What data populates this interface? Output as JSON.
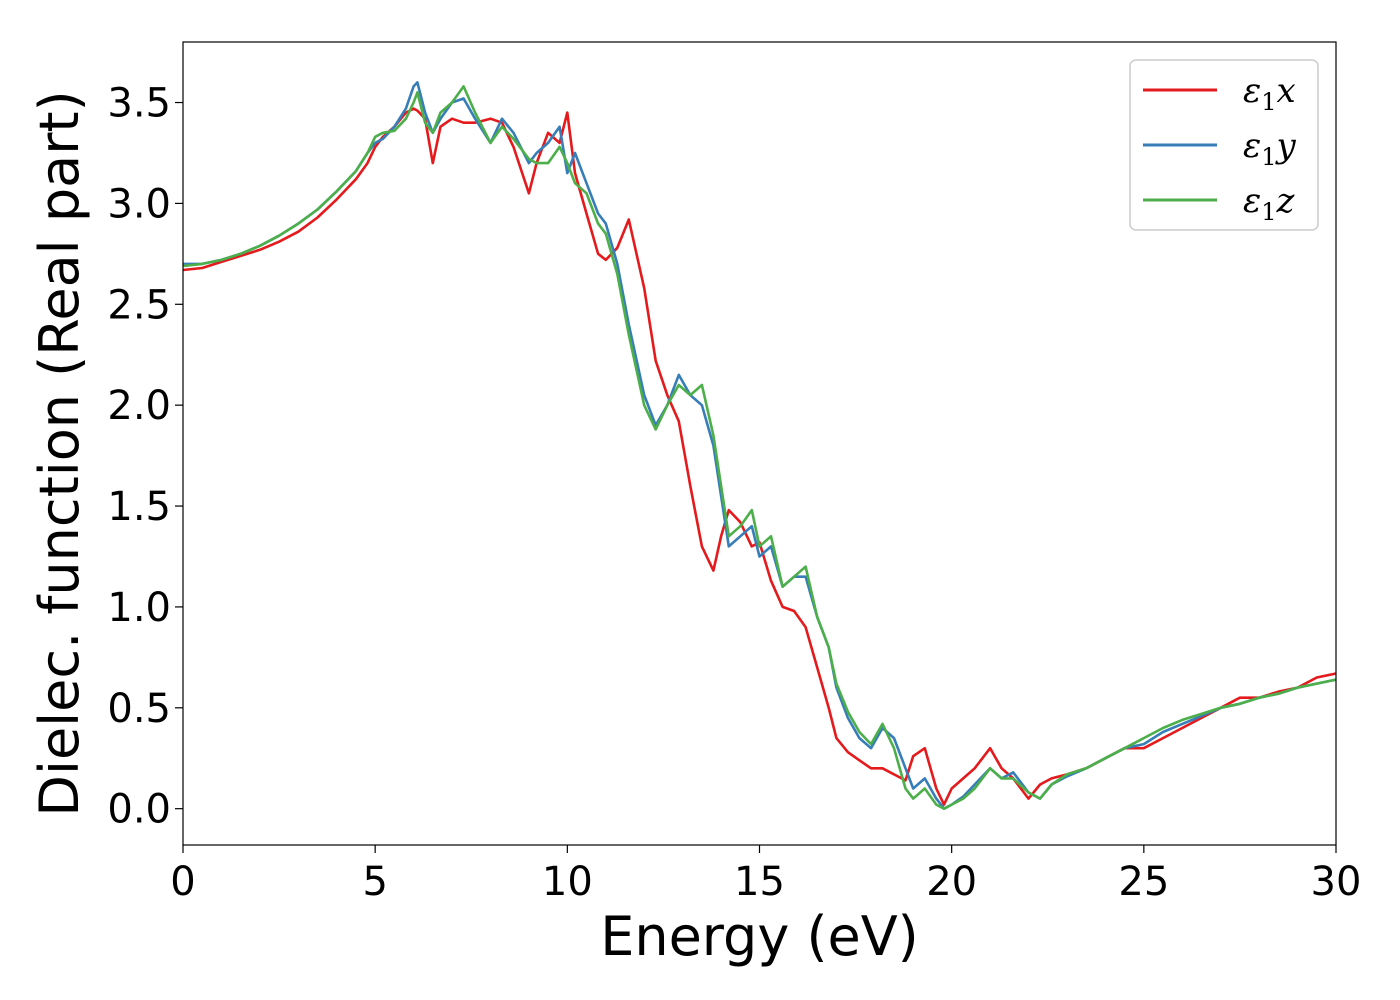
{
  "chart_data": {
    "type": "line",
    "title": "",
    "xlabel": "Energy (eV)",
    "ylabel": "Dielec. function (Real part)",
    "xlim": [
      0,
      30
    ],
    "ylim": [
      -0.18,
      3.8
    ],
    "xticks": [
      0,
      5,
      10,
      15,
      20,
      25,
      30
    ],
    "xtick_labels": [
      "0",
      "5",
      "10",
      "15",
      "20",
      "25",
      "30"
    ],
    "yticks": [
      0.0,
      0.5,
      1.0,
      1.5,
      2.0,
      2.5,
      3.0,
      3.5
    ],
    "ytick_labels": [
      "0.0",
      "0.5",
      "1.0",
      "1.5",
      "2.0",
      "2.5",
      "3.0",
      "3.5"
    ],
    "grid": false,
    "legend_position": "top-right",
    "series": [
      {
        "name": "ε₁x",
        "legend_base": "ε",
        "legend_sub": "1",
        "legend_var": "x",
        "color": "#e41a1c",
        "x": [
          0,
          0.5,
          1,
          1.5,
          2,
          2.5,
          3,
          3.5,
          4,
          4.5,
          4.8,
          5,
          5.2,
          5.5,
          5.8,
          6,
          6.1,
          6.3,
          6.5,
          6.7,
          7,
          7.3,
          7.6,
          8,
          8.3,
          8.6,
          9,
          9.2,
          9.5,
          9.8,
          10,
          10.2,
          10.5,
          10.8,
          11,
          11.3,
          11.6,
          12,
          12.3,
          12.6,
          12.9,
          13.2,
          13.5,
          13.8,
          14,
          14.2,
          14.5,
          14.8,
          15,
          15.3,
          15.6,
          15.9,
          16.2,
          16.5,
          16.8,
          17,
          17.3,
          17.6,
          17.9,
          18.2,
          18.5,
          18.8,
          19,
          19.3,
          19.6,
          19.8,
          20,
          20.3,
          20.6,
          21,
          21.3,
          21.6,
          22,
          22.3,
          22.6,
          23,
          23.5,
          24,
          24.5,
          25,
          25.5,
          26,
          26.5,
          27,
          27.5,
          28,
          28.5,
          29,
          29.5,
          30
        ],
        "y": [
          2.67,
          2.68,
          2.71,
          2.74,
          2.77,
          2.81,
          2.86,
          2.93,
          3.02,
          3.12,
          3.2,
          3.28,
          3.33,
          3.38,
          3.45,
          3.47,
          3.46,
          3.42,
          3.2,
          3.38,
          3.42,
          3.4,
          3.4,
          3.42,
          3.4,
          3.28,
          3.05,
          3.2,
          3.35,
          3.3,
          3.45,
          3.15,
          2.95,
          2.75,
          2.72,
          2.78,
          2.92,
          2.58,
          2.22,
          2.05,
          1.92,
          1.6,
          1.3,
          1.18,
          1.35,
          1.48,
          1.42,
          1.3,
          1.32,
          1.13,
          1.0,
          0.98,
          0.9,
          0.7,
          0.5,
          0.35,
          0.28,
          0.24,
          0.2,
          0.2,
          0.17,
          0.14,
          0.26,
          0.3,
          0.1,
          0.02,
          0.1,
          0.15,
          0.2,
          0.3,
          0.2,
          0.15,
          0.05,
          0.12,
          0.15,
          0.17,
          0.2,
          0.25,
          0.3,
          0.3,
          0.35,
          0.4,
          0.45,
          0.5,
          0.55,
          0.55,
          0.58,
          0.6,
          0.65,
          0.67
        ]
      },
      {
        "name": "ε₁y",
        "legend_base": "ε",
        "legend_sub": "1",
        "legend_var": "y",
        "color": "#377eb8",
        "x": [
          0,
          0.5,
          1,
          1.5,
          2,
          2.5,
          3,
          3.5,
          4,
          4.5,
          4.8,
          5,
          5.2,
          5.5,
          5.8,
          6,
          6.1,
          6.3,
          6.5,
          6.7,
          7,
          7.3,
          7.6,
          8,
          8.3,
          8.6,
          9,
          9.2,
          9.5,
          9.8,
          10,
          10.2,
          10.5,
          10.8,
          11,
          11.3,
          11.6,
          12,
          12.3,
          12.6,
          12.9,
          13.2,
          13.5,
          13.8,
          14,
          14.2,
          14.5,
          14.8,
          15,
          15.3,
          15.6,
          15.9,
          16.2,
          16.5,
          16.8,
          17,
          17.3,
          17.6,
          17.9,
          18.2,
          18.5,
          18.8,
          19,
          19.3,
          19.6,
          19.8,
          20,
          20.3,
          20.6,
          21,
          21.3,
          21.6,
          22,
          22.3,
          22.6,
          23,
          23.5,
          24,
          24.5,
          25,
          25.5,
          26,
          26.5,
          27,
          27.5,
          28,
          28.5,
          29,
          29.5,
          30
        ],
        "y": [
          2.7,
          2.7,
          2.72,
          2.75,
          2.79,
          2.84,
          2.9,
          2.97,
          3.06,
          3.16,
          3.25,
          3.3,
          3.32,
          3.38,
          3.47,
          3.58,
          3.6,
          3.45,
          3.35,
          3.42,
          3.5,
          3.52,
          3.42,
          3.3,
          3.42,
          3.35,
          3.2,
          3.25,
          3.3,
          3.38,
          3.15,
          3.25,
          3.1,
          2.95,
          2.9,
          2.7,
          2.4,
          2.05,
          1.9,
          2.0,
          2.15,
          2.05,
          2.0,
          1.8,
          1.55,
          1.3,
          1.35,
          1.4,
          1.25,
          1.3,
          1.1,
          1.15,
          1.15,
          0.95,
          0.8,
          0.6,
          0.45,
          0.35,
          0.3,
          0.4,
          0.35,
          0.2,
          0.1,
          0.15,
          0.05,
          0.0,
          0.02,
          0.06,
          0.12,
          0.2,
          0.15,
          0.18,
          0.08,
          0.05,
          0.12,
          0.16,
          0.2,
          0.25,
          0.3,
          0.32,
          0.38,
          0.42,
          0.46,
          0.5,
          0.52,
          0.55,
          0.57,
          0.6,
          0.62,
          0.64
        ]
      },
      {
        "name": "ε₁z",
        "legend_base": "ε",
        "legend_sub": "1",
        "legend_var": "z",
        "color": "#4daf4a",
        "x": [
          0,
          0.5,
          1,
          1.5,
          2,
          2.5,
          3,
          3.5,
          4,
          4.5,
          4.8,
          5,
          5.2,
          5.5,
          5.8,
          6,
          6.1,
          6.3,
          6.5,
          6.7,
          7,
          7.3,
          7.6,
          8,
          8.3,
          8.6,
          9,
          9.2,
          9.5,
          9.8,
          10,
          10.2,
          10.5,
          10.8,
          11,
          11.3,
          11.6,
          12,
          12.3,
          12.6,
          12.9,
          13.2,
          13.5,
          13.8,
          14,
          14.2,
          14.5,
          14.8,
          15,
          15.3,
          15.6,
          15.9,
          16.2,
          16.5,
          16.8,
          17,
          17.3,
          17.6,
          17.9,
          18.2,
          18.5,
          18.8,
          19,
          19.3,
          19.6,
          19.8,
          20,
          20.3,
          20.6,
          21,
          21.3,
          21.6,
          22,
          22.3,
          22.6,
          23,
          23.5,
          24,
          24.5,
          25,
          25.5,
          26,
          26.5,
          27,
          27.5,
          28,
          28.5,
          29,
          29.5,
          30
        ],
        "y": [
          2.69,
          2.7,
          2.72,
          2.75,
          2.79,
          2.84,
          2.9,
          2.97,
          3.06,
          3.16,
          3.25,
          3.33,
          3.35,
          3.36,
          3.42,
          3.5,
          3.55,
          3.4,
          3.35,
          3.45,
          3.5,
          3.58,
          3.45,
          3.3,
          3.38,
          3.32,
          3.22,
          3.2,
          3.2,
          3.28,
          3.2,
          3.1,
          3.05,
          2.9,
          2.85,
          2.65,
          2.35,
          2.0,
          1.88,
          2.0,
          2.1,
          2.05,
          2.1,
          1.85,
          1.6,
          1.35,
          1.4,
          1.48,
          1.3,
          1.35,
          1.1,
          1.15,
          1.2,
          0.95,
          0.8,
          0.62,
          0.48,
          0.38,
          0.32,
          0.42,
          0.3,
          0.1,
          0.05,
          0.1,
          0.02,
          0.0,
          0.02,
          0.05,
          0.1,
          0.2,
          0.15,
          0.15,
          0.08,
          0.05,
          0.12,
          0.17,
          0.2,
          0.25,
          0.3,
          0.35,
          0.4,
          0.44,
          0.47,
          0.5,
          0.52,
          0.55,
          0.57,
          0.6,
          0.62,
          0.64
        ]
      }
    ]
  }
}
